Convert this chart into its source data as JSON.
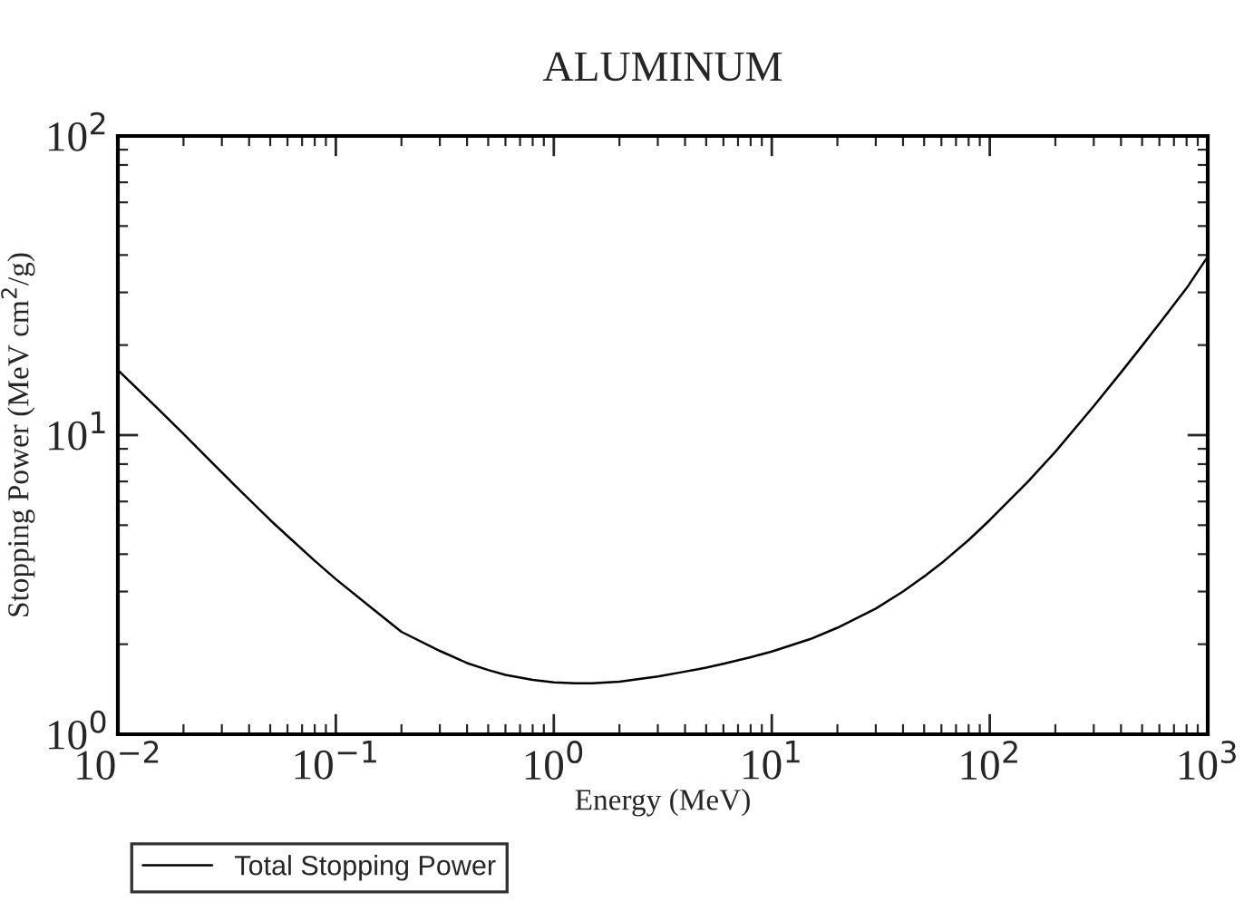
{
  "chart_data": {
    "type": "line",
    "title": "ALUMINUM",
    "xlabel": "Energy (MeV)",
    "ylabel": "Stopping Power (MeV cm$^{2}$/g)",
    "log": "xy",
    "xlim": [
      0.01,
      1000
    ],
    "ylim": [
      1,
      100
    ],
    "xticks": [
      {
        "value": 0.01,
        "label": "10$^{−2}$"
      },
      {
        "value": 0.1,
        "label": "10$^{−1}$"
      },
      {
        "value": 1,
        "label": "10$^{0}$"
      },
      {
        "value": 10,
        "label": "10$^{1}$"
      },
      {
        "value": 100,
        "label": "10$^{2}$"
      },
      {
        "value": 1000,
        "label": "10$^{3}$"
      }
    ],
    "yticks": [
      {
        "value": 1,
        "label": "10$^{0}$"
      },
      {
        "value": 10,
        "label": "10$^{1}$"
      },
      {
        "value": 100,
        "label": "10$^{2}$"
      }
    ],
    "grid": false,
    "legend": "bottom left",
    "marker": "none",
    "line_style": "solid",
    "x": [
      0.01,
      0.015,
      0.02,
      0.03,
      0.04,
      0.05,
      0.06,
      0.08,
      0.1,
      0.15,
      0.2,
      0.3,
      0.4,
      0.5,
      0.6,
      0.8,
      1,
      1.25,
      1.5,
      2,
      3,
      4,
      5,
      6,
      8,
      10,
      15,
      20,
      30,
      40,
      50,
      60,
      80,
      100,
      150,
      200,
      300,
      400,
      500,
      600,
      800,
      1000
    ],
    "series": [
      {
        "name": "Total Stopping Power",
        "color": "#000000",
        "values": [
          16.5,
          12.4,
          10.1,
          7.5,
          6.1,
          5.2,
          4.6,
          3.8,
          3.3,
          2.6,
          2.2,
          1.9,
          1.73,
          1.64,
          1.58,
          1.52,
          1.49,
          1.48,
          1.48,
          1.5,
          1.56,
          1.62,
          1.67,
          1.72,
          1.81,
          1.89,
          2.08,
          2.27,
          2.63,
          3.0,
          3.37,
          3.73,
          4.46,
          5.2,
          7.0,
          8.8,
          12.5,
          16.2,
          19.9,
          23.6,
          31.0,
          39.5
        ]
      }
    ]
  }
}
